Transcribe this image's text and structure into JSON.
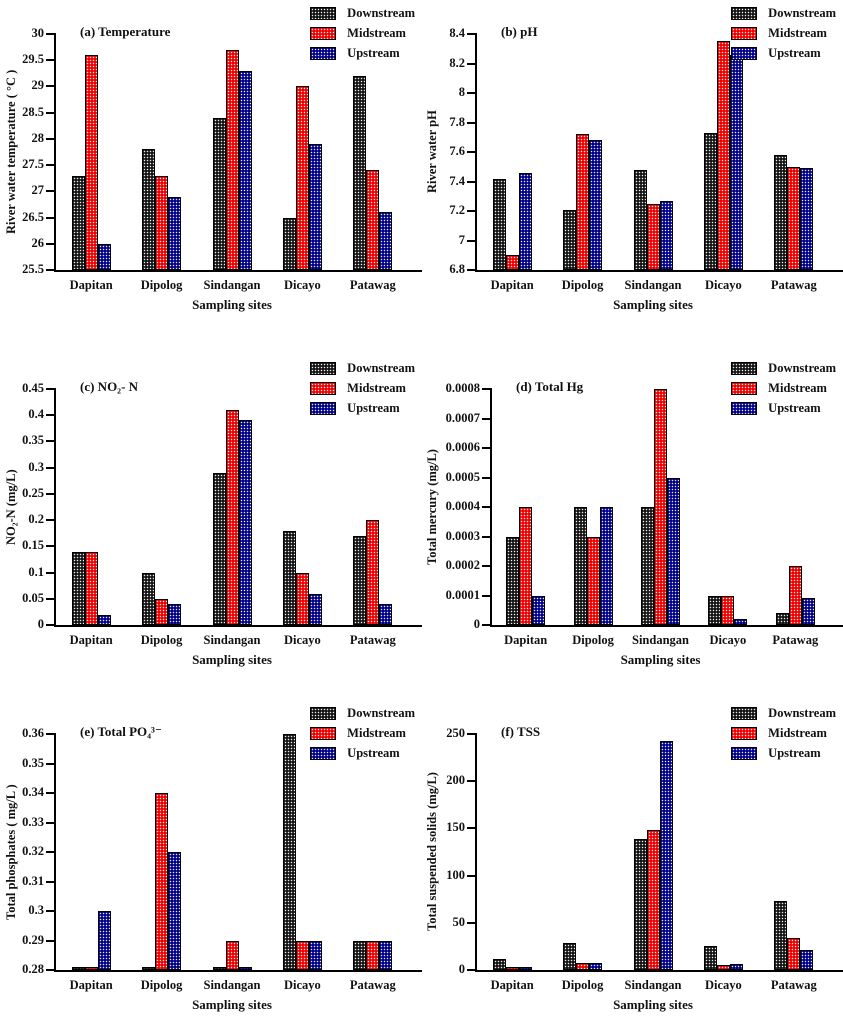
{
  "figure": {
    "legend_labels": [
      "Downstream",
      "Midstream",
      "Upstream"
    ],
    "series_colors": {
      "Downstream": "#151515",
      "Midstream": "#ee0000",
      "Upstream": "#00008b"
    },
    "categories": [
      "Dapitan",
      "Dipolog",
      "Sindangan",
      "Dicayo",
      "Patawag"
    ],
    "xlabel": "Sampling sites"
  },
  "chart_data": [
    {
      "id": "temperature",
      "type": "bar",
      "title": "(a) Temperature",
      "ylabel": "River water temperature ( °C )",
      "xlabel": "Sampling sites",
      "ylim": [
        25.5,
        30
      ],
      "yticks": [
        25.5,
        26,
        26.5,
        27,
        27.5,
        28,
        28.5,
        29,
        29.5,
        30
      ],
      "ytick_labels": [
        "25.5",
        "26",
        "26.5",
        "27",
        "27.5",
        "28",
        "28.5",
        "29",
        "29.5",
        "30"
      ],
      "grid": false,
      "legend_position": "top-right",
      "categories": [
        "Dapitan",
        "Dipolog",
        "Sindangan",
        "Dicayo",
        "Patawag"
      ],
      "series": [
        {
          "name": "Downstream",
          "color": "#151515",
          "values": [
            27.3,
            27.8,
            28.4,
            26.5,
            29.2
          ]
        },
        {
          "name": "Midstream",
          "color": "#ee0000",
          "values": [
            29.6,
            27.3,
            29.7,
            29.0,
            27.4
          ]
        },
        {
          "name": "Upstream",
          "color": "#00008b",
          "values": [
            26.0,
            26.9,
            29.3,
            27.9,
            26.6
          ]
        }
      ]
    },
    {
      "id": "ph",
      "type": "bar",
      "title": "(b) pH",
      "ylabel": "River water pH",
      "xlabel": "Sampling sites",
      "ylim": [
        6.8,
        8.4
      ],
      "yticks": [
        6.8,
        7.0,
        7.2,
        7.4,
        7.6,
        7.8,
        8.0,
        8.2,
        8.4
      ],
      "ytick_labels": [
        "6.8",
        "7",
        "7.2",
        "7.4",
        "7.6",
        "7.8",
        "8",
        "8.2",
        "8.4"
      ],
      "grid": false,
      "legend_position": "top-right",
      "categories": [
        "Dapitan",
        "Dipolog",
        "Sindangan",
        "Dicayo",
        "Patawag"
      ],
      "series": [
        {
          "name": "Downstream",
          "color": "#151515",
          "values": [
            7.42,
            7.21,
            7.48,
            7.73,
            7.58
          ]
        },
        {
          "name": "Midstream",
          "color": "#ee0000",
          "values": [
            6.9,
            7.72,
            7.25,
            8.35,
            7.5
          ]
        },
        {
          "name": "Upstream",
          "color": "#00008b",
          "values": [
            7.46,
            7.68,
            7.27,
            8.26,
            7.49
          ]
        }
      ]
    },
    {
      "id": "no2n",
      "type": "bar",
      "title": "(c) NO₂- N",
      "ylabel": "NO₂-N (mg/L)",
      "xlabel": "Sampling sites",
      "ylim": [
        0,
        0.45
      ],
      "yticks": [
        0,
        0.05,
        0.1,
        0.15,
        0.2,
        0.25,
        0.3,
        0.35,
        0.4,
        0.45
      ],
      "ytick_labels": [
        "0",
        "0.05",
        "0.1",
        "0.15",
        "0.2",
        "0.25",
        "0.3",
        "0.35",
        "0.4",
        "0.45"
      ],
      "grid": false,
      "legend_position": "top-right",
      "categories": [
        "Dapitan",
        "Dipolog",
        "Sindangan",
        "Dicayo",
        "Patawag"
      ],
      "series": [
        {
          "name": "Downstream",
          "color": "#151515",
          "values": [
            0.14,
            0.1,
            0.29,
            0.18,
            0.17
          ]
        },
        {
          "name": "Midstream",
          "color": "#ee0000",
          "values": [
            0.14,
            0.05,
            0.41,
            0.1,
            0.2
          ]
        },
        {
          "name": "Upstream",
          "color": "#00008b",
          "values": [
            0.02,
            0.04,
            0.39,
            0.06,
            0.04
          ]
        }
      ]
    },
    {
      "id": "total-hg",
      "type": "bar",
      "title": "(d) Total Hg",
      "ylabel": "Total mercury (mg/L)",
      "xlabel": "Sampling sites",
      "ylim": [
        0,
        0.0008
      ],
      "yticks": [
        0,
        0.0001,
        0.0002,
        0.0003,
        0.0004,
        0.0005,
        0.0006,
        0.0007,
        0.0008
      ],
      "ytick_labels": [
        "0",
        "0.0001",
        "0.0002",
        "0.0003",
        "0.0004",
        "0.0005",
        "0.0006",
        "0.0007",
        "0.0008"
      ],
      "grid": false,
      "legend_position": "top-right",
      "categories": [
        "Dapitan",
        "Dipolog",
        "Sindangan",
        "Dicayo",
        "Patawag"
      ],
      "series": [
        {
          "name": "Downstream",
          "color": "#151515",
          "values": [
            0.0003,
            0.0004,
            0.0004,
            0.0001,
            4e-05
          ]
        },
        {
          "name": "Midstream",
          "color": "#ee0000",
          "values": [
            0.0004,
            0.0003,
            0.0008,
            0.0001,
            0.0002
          ]
        },
        {
          "name": "Upstream",
          "color": "#00008b",
          "values": [
            0.0001,
            0.0004,
            0.0005,
            2e-05,
            9e-05
          ]
        }
      ]
    },
    {
      "id": "total-po4",
      "type": "bar",
      "title": "(e) Total PO₄³⁻",
      "ylabel": "Total phosphates ( mg/L )",
      "xlabel": "Sampling sites",
      "ylim": [
        0.28,
        0.36
      ],
      "yticks": [
        0.28,
        0.29,
        0.3,
        0.31,
        0.32,
        0.33,
        0.34,
        0.35,
        0.36
      ],
      "ytick_labels": [
        "0.28",
        "0.29",
        "0.3",
        "0.31",
        "0.32",
        "0.33",
        "0.34",
        "0.35",
        "0.36"
      ],
      "grid": false,
      "legend_position": "top-right",
      "categories": [
        "Dapitan",
        "Dipolog",
        "Sindangan",
        "Dicayo",
        "Patawag"
      ],
      "series": [
        {
          "name": "Downstream",
          "color": "#151515",
          "values": [
            0.281,
            0.281,
            0.281,
            0.36,
            0.29
          ]
        },
        {
          "name": "Midstream",
          "color": "#ee0000",
          "values": [
            0.281,
            0.34,
            0.29,
            0.29,
            0.29
          ]
        },
        {
          "name": "Upstream",
          "color": "#00008b",
          "values": [
            0.3,
            0.32,
            0.281,
            0.29,
            0.29
          ]
        }
      ]
    },
    {
      "id": "tss",
      "type": "bar",
      "title": "(f) TSS",
      "ylabel": "Total suspended solids (mg/L)",
      "xlabel": "Sampling sites",
      "ylim": [
        0,
        250
      ],
      "yticks": [
        0,
        50,
        100,
        150,
        200,
        250
      ],
      "ytick_labels": [
        "0",
        "50",
        "100",
        "150",
        "200",
        "250"
      ],
      "grid": false,
      "legend_position": "top-right",
      "categories": [
        "Dapitan",
        "Dipolog",
        "Sindangan",
        "Dicayo",
        "Patawag"
      ],
      "series": [
        {
          "name": "Downstream",
          "color": "#151515",
          "values": [
            12,
            29,
            139,
            25,
            73
          ]
        },
        {
          "name": "Midstream",
          "color": "#ee0000",
          "values": [
            3,
            7,
            148,
            5,
            34
          ]
        },
        {
          "name": "Upstream",
          "color": "#00008b",
          "values": [
            3,
            7,
            243,
            6,
            21
          ]
        }
      ]
    }
  ]
}
